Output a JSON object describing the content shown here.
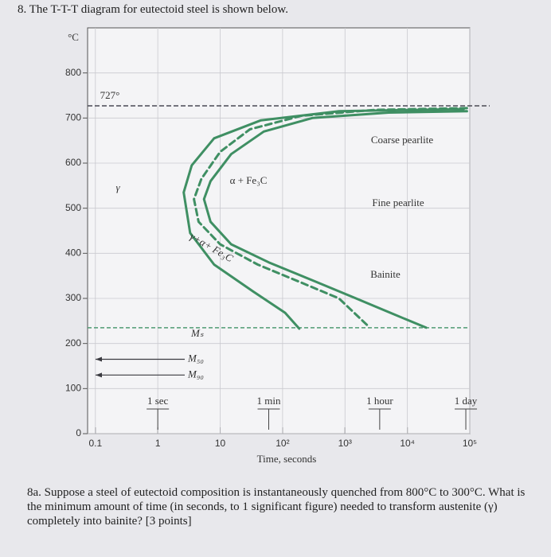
{
  "header": {
    "title": "8. The T-T-T diagram for eutectoid steel is shown below."
  },
  "chart_data": {
    "type": "line",
    "xlabel": "Time, seconds",
    "ylabel": "°C",
    "xscale": "log",
    "xlim": [
      0.075,
      100000
    ],
    "ylim": [
      0,
      900
    ],
    "xticks": [
      0.1,
      1,
      10,
      {
        "value": 100,
        "label": "10²"
      },
      {
        "value": 1000,
        "label": "10³"
      },
      {
        "value": 10000,
        "label": "10⁴"
      },
      {
        "value": 100000,
        "label": "10⁵"
      }
    ],
    "yticks": [
      0,
      100,
      200,
      300,
      400,
      500,
      600,
      700,
      800
    ],
    "grid": true,
    "time_marks": [
      {
        "value": 1,
        "label": "1 sec"
      },
      {
        "value": 60,
        "label": "1 min"
      },
      {
        "value": 3600,
        "label": "1 hour"
      },
      {
        "value": 86400,
        "label": "1 day"
      }
    ],
    "reference_lines": [
      {
        "label": "727°",
        "value": 727,
        "color": "#4a4a55"
      },
      {
        "label": "Mₛ",
        "value": 235,
        "color": "#4f9a74"
      },
      {
        "label": "M₅₀",
        "value": 165,
        "color": "#3a3a40"
      },
      {
        "label": "M₉₀",
        "value": 130,
        "color": "#3a3a40"
      }
    ],
    "series": [
      {
        "color": "#3f8f63",
        "dashed": false,
        "x": [
          80000,
          800,
          45,
          8,
          3.5,
          2.6,
          3.3,
          8,
          34,
          110,
          185
        ],
        "values": [
          720,
          715,
          695,
          655,
          595,
          535,
          445,
          375,
          315,
          268,
          233
        ]
      },
      {
        "color": "#3f8f63",
        "dashed": true,
        "x": [
          90000,
          3000,
          200,
          30,
          10,
          5,
          3.8,
          4.5,
          10,
          40,
          200,
          800,
          2300
        ],
        "values": [
          722,
          718,
          705,
          675,
          625,
          565,
          520,
          470,
          420,
          375,
          335,
          300,
          240
        ]
      },
      {
        "color": "#3f8f63",
        "dashed": false,
        "x": [
          90000,
          5000,
          300,
          50,
          15,
          7,
          5.5,
          7,
          15,
          60,
          300,
          1500,
          6000,
          20000
        ],
        "values": [
          715,
          712,
          700,
          670,
          620,
          560,
          520,
          470,
          420,
          380,
          340,
          300,
          265,
          235
        ]
      }
    ],
    "annotations": [
      "γ",
      "α + Fe₃C",
      "γ+α+ Fe₃C",
      "Coarse pearlite",
      "Fine pearlite",
      "Bainite"
    ]
  },
  "question": {
    "text": "8a. Suppose a steel of eutectoid composition is instantaneously quenched from 800°C to 300°C. What is the minimum amount of time (in seconds, to 1 significant figure) needed to transform austenite (γ) completely into bainite? [3 points]"
  }
}
